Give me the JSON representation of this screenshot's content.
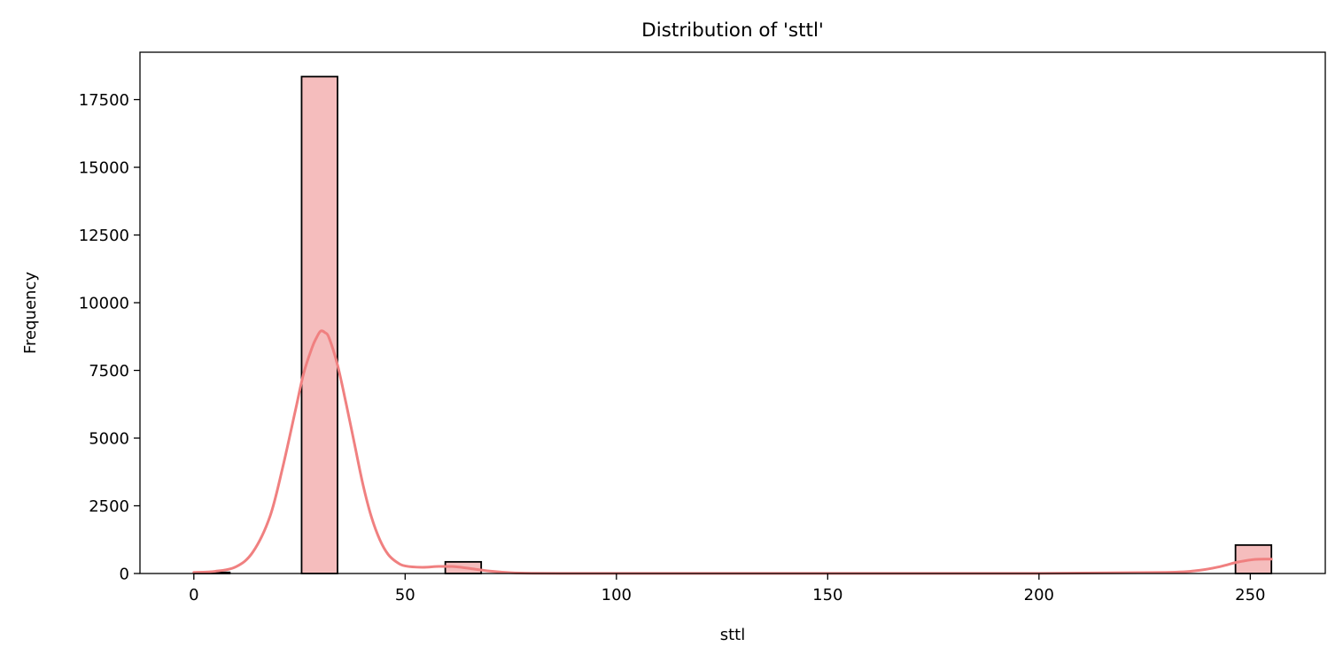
{
  "chart_data": {
    "type": "bar",
    "title": "Distribution of 'sttl'",
    "xlabel": "sttl",
    "ylabel": "Frequency",
    "xlim": [
      -12.75,
      267.75
    ],
    "ylim": [
      0,
      19250
    ],
    "xticks": [
      0,
      50,
      100,
      150,
      200,
      250
    ],
    "yticks": [
      0,
      2500,
      5000,
      7500,
      10000,
      12500,
      15000,
      17500
    ],
    "bin_width": 8.5,
    "bins": [
      {
        "start": 0,
        "end": 8.5,
        "count": 40
      },
      {
        "start": 25.5,
        "end": 34,
        "count": 18350
      },
      {
        "start": 59.5,
        "end": 68,
        "count": 430
      },
      {
        "start": 246.5,
        "end": 255,
        "count": 1050
      }
    ],
    "kde": {
      "x": [
        0,
        5,
        10,
        14,
        18,
        21,
        24,
        26,
        28,
        29,
        30,
        31,
        32,
        34,
        36,
        38,
        40,
        42,
        44,
        46,
        48,
        50,
        54,
        58,
        62,
        66,
        70,
        75,
        80,
        90,
        100,
        150,
        200,
        230,
        238,
        243,
        247,
        251,
        255
      ],
      "y": [
        40,
        80,
        250,
        800,
        2100,
        3900,
        6000,
        7400,
        8350,
        8700,
        8950,
        8900,
        8700,
        7700,
        6300,
        4800,
        3300,
        2100,
        1250,
        700,
        420,
        280,
        230,
        260,
        250,
        170,
        90,
        30,
        10,
        5,
        3,
        3,
        5,
        40,
        120,
        260,
        420,
        520,
        530
      ]
    },
    "colors": {
      "bar_fill": "#f5bdbd",
      "bar_edge": "#000000",
      "kde_line": "#f08080"
    },
    "grid": false,
    "legend": "none"
  }
}
